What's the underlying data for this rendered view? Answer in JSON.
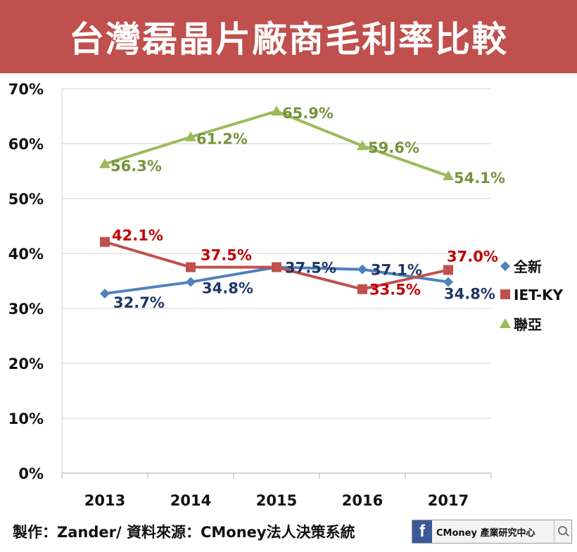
{
  "title": "台灣磊晶片廠商毛利率比較",
  "footer": {
    "credit": "製作：Zander/ 資料來源：CMoney法人決策系統",
    "brand_letter": "f",
    "brand": "CMoney 產業研究中心"
  },
  "chart_data": {
    "type": "line",
    "categories": [
      "2013",
      "2014",
      "2015",
      "2016",
      "2017"
    ],
    "y_ticks": [
      "0%",
      "10%",
      "20%",
      "30%",
      "40%",
      "50%",
      "60%",
      "70%"
    ],
    "ylim": [
      0,
      70
    ],
    "grid": "horizontal",
    "legend_placement": "right",
    "series": [
      {
        "name": "全新",
        "color": "#4f81bd",
        "label_color": "#1f3864",
        "marker": "diamond",
        "values": [
          32.7,
          34.8,
          37.5,
          37.1,
          34.8
        ],
        "labels": [
          "32.7%",
          "34.8%",
          "37.5%",
          "37.1%",
          "34.8%"
        ]
      },
      {
        "name": "IET-KY",
        "color": "#c0504d",
        "label_color": "#c00000",
        "marker": "square",
        "values": [
          42.1,
          37.5,
          37.5,
          33.5,
          37.0
        ],
        "labels": [
          "42.1%",
          "37.5%",
          "",
          "33.5%",
          "37.0%"
        ]
      },
      {
        "name": "聯亞",
        "color": "#9bbb59",
        "label_color": "#76923c",
        "marker": "triangle",
        "values": [
          56.3,
          61.2,
          65.9,
          59.6,
          54.1
        ],
        "labels": [
          "56.3%",
          "61.2%",
          "65.9%",
          "59.6%",
          "54.1%"
        ]
      }
    ]
  }
}
